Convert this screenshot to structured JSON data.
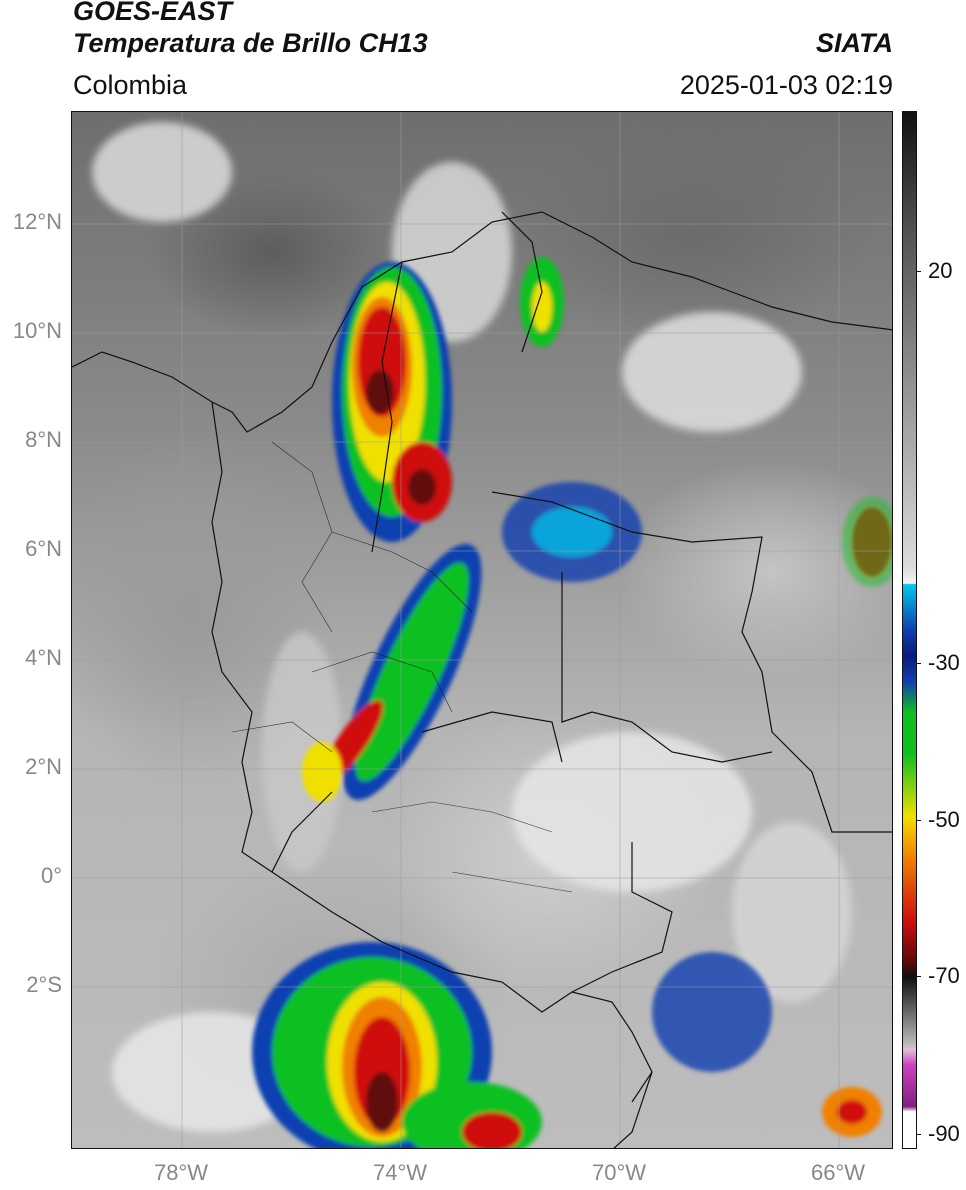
{
  "header": {
    "satellite": "GOES-EAST",
    "product": "Temperatura de Brillo CH13",
    "organization": "SIATA",
    "region": "Colombia",
    "timestamp": "2025-01-03 02:19"
  },
  "map": {
    "lat_labels": [
      "12°N",
      "10°N",
      "8°N",
      "6°N",
      "4°N",
      "2°N",
      "0°",
      "2°S"
    ],
    "lon_labels": [
      "78°W",
      "74°W",
      "70°W",
      "66°W"
    ]
  },
  "colorbar": {
    "labels": [
      "20",
      "-30",
      "-50",
      "-70",
      "-90"
    ],
    "colors": {
      "cyan": "#00c8f0",
      "blue": "#1040b0",
      "navy": "#0a1a80",
      "green": "#10c020",
      "yellow": "#f0e000",
      "orange": "#f08000",
      "red": "#d01010",
      "darkred": "#600808",
      "magenta": "#d040c0"
    }
  }
}
